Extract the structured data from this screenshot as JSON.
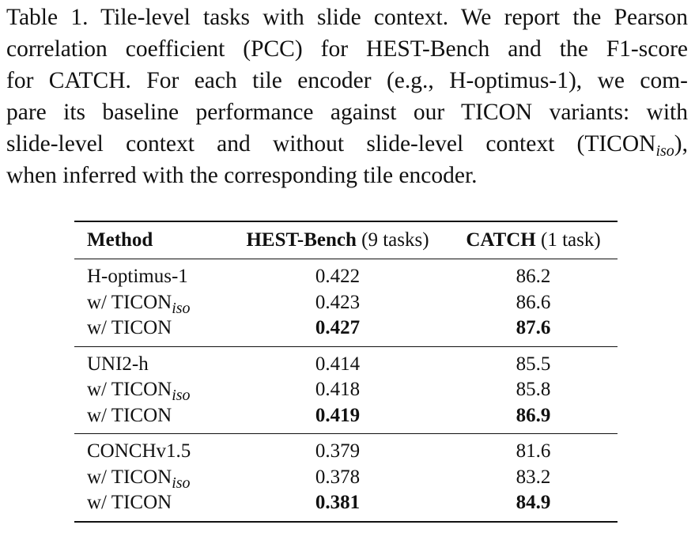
{
  "caption": {
    "lines": [
      "Table 1. Tile-level tasks with slide context. We report the Pearson",
      "correlation coefficient (PCC) for HEST-Bench and the F1-score",
      "for CATCH. For each tile encoder (e.g., H-optimus-1), we com-",
      "pare its baseline performance against our TICON variants: with",
      "slide-level context and without slide-level context (TICON",
      "when inferred with the corresponding tile encoder."
    ],
    "line5_sub": "iso",
    "line5_tail": "),"
  },
  "table": {
    "headers": {
      "method": "Method",
      "hest_bold": "HEST-Bench",
      "hest_rest": " (9 tasks)",
      "catch_bold": "CATCH",
      "catch_rest": " (1 task)"
    },
    "groups": [
      {
        "rows": [
          {
            "method": "H-optimus-1",
            "sub": "",
            "hest": "0.422",
            "catch": "86.2",
            "bold": false
          },
          {
            "method": "w/ TICON",
            "sub": "iso",
            "hest": "0.423",
            "catch": "86.6",
            "bold": false
          },
          {
            "method": "w/ TICON",
            "sub": "",
            "hest": "0.427",
            "catch": "87.6",
            "bold": true
          }
        ]
      },
      {
        "rows": [
          {
            "method": "UNI2-h",
            "sub": "",
            "hest": "0.414",
            "catch": "85.5",
            "bold": false
          },
          {
            "method": "w/ TICON",
            "sub": "iso",
            "hest": "0.418",
            "catch": "85.8",
            "bold": false
          },
          {
            "method": "w/ TICON",
            "sub": "",
            "hest": "0.419",
            "catch": "86.9",
            "bold": true
          }
        ]
      },
      {
        "rows": [
          {
            "method": "CONCHv1.5",
            "sub": "",
            "hest": "0.379",
            "catch": "81.6",
            "bold": false
          },
          {
            "method": "w/ TICON",
            "sub": "iso",
            "hest": "0.378",
            "catch": "83.2",
            "bold": false
          },
          {
            "method": "w/ TICON",
            "sub": "",
            "hest": "0.381",
            "catch": "84.9",
            "bold": true
          }
        ]
      }
    ]
  }
}
